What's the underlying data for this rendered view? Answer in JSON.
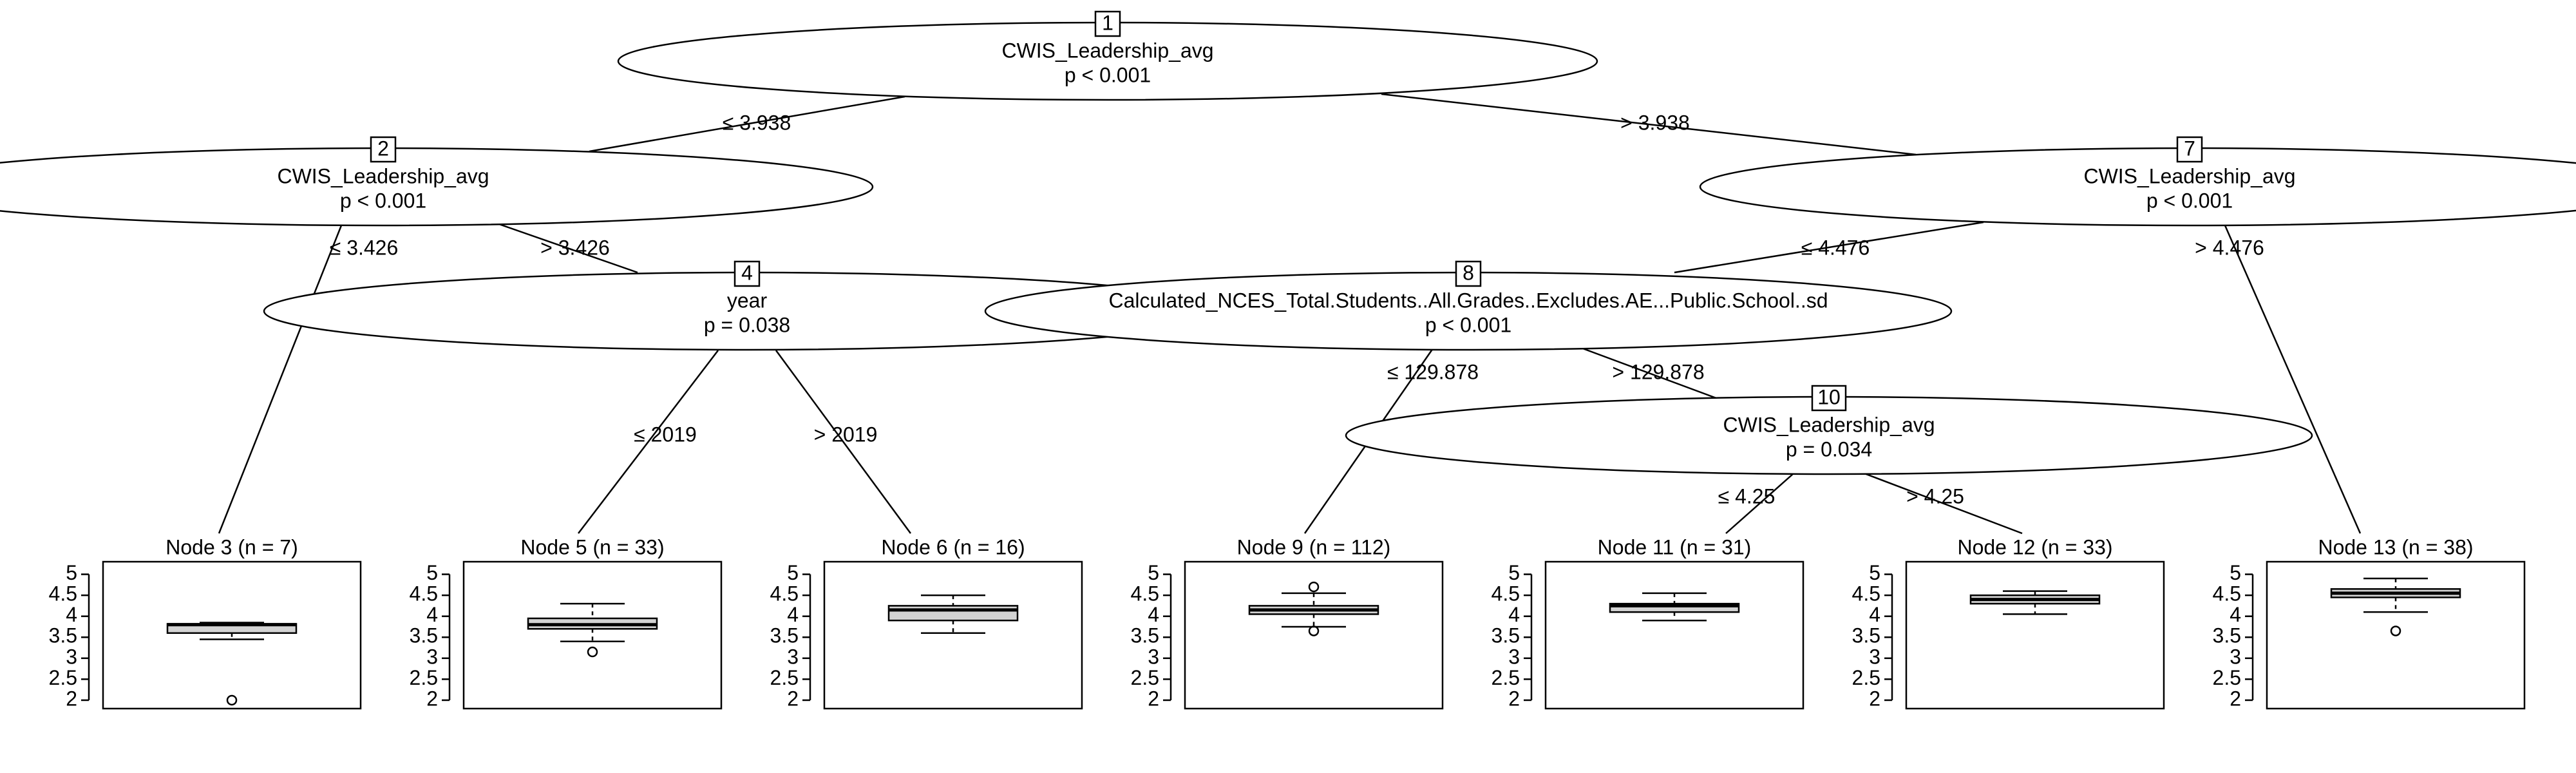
{
  "tree": {
    "inner_nodes": [
      {
        "id": "1",
        "variable": "CWIS_Leadership_avg",
        "p_value": "p < 0.001"
      },
      {
        "id": "2",
        "variable": "CWIS_Leadership_avg",
        "p_value": "p < 0.001"
      },
      {
        "id": "4",
        "variable": "year",
        "p_value": "p = 0.038"
      },
      {
        "id": "7",
        "variable": "CWIS_Leadership_avg",
        "p_value": "p < 0.001"
      },
      {
        "id": "8",
        "variable": "Calculated_NCES_Total.Students..All.Grades..Excludes.AE...Public.School..sd",
        "p_value": "p < 0.001"
      },
      {
        "id": "10",
        "variable": "CWIS_Leadership_avg",
        "p_value": "p = 0.034"
      }
    ],
    "edges": [
      {
        "from": "1",
        "to": "2",
        "label": "≤ 3.938"
      },
      {
        "from": "1",
        "to": "7",
        "label": "> 3.938"
      },
      {
        "from": "2",
        "to": "3",
        "label": "≤ 3.426"
      },
      {
        "from": "2",
        "to": "4",
        "label": "> 3.426"
      },
      {
        "from": "4",
        "to": "5",
        "label": "≤ 2019"
      },
      {
        "from": "4",
        "to": "6",
        "label": "> 2019"
      },
      {
        "from": "7",
        "to": "8",
        "label": "≤ 4.476"
      },
      {
        "from": "7",
        "to": "13",
        "label": "> 4.476"
      },
      {
        "from": "8",
        "to": "9",
        "label": "≤ 129.878"
      },
      {
        "from": "8",
        "to": "10",
        "label": "> 129.878"
      },
      {
        "from": "10",
        "to": "11",
        "label": "≤ 4.25"
      },
      {
        "from": "10",
        "to": "12",
        "label": "> 4.25"
      }
    ],
    "axis": {
      "ticks": [
        "2",
        "2.5",
        "3",
        "3.5",
        "4",
        "4.5",
        "5"
      ],
      "min": 2,
      "max": 5
    }
  },
  "chart_data": {
    "type": "boxplot",
    "ylim": [
      1.8,
      5.3
    ],
    "leaves": [
      {
        "id": "3",
        "title": "Node 3 (n = 7)",
        "min": 3.45,
        "q1": 3.6,
        "median": 3.8,
        "q3": 3.82,
        "max": 3.85,
        "outliers": [
          2.0
        ]
      },
      {
        "id": "5",
        "title": "Node 5 (n = 33)",
        "min": 3.4,
        "q1": 3.7,
        "median": 3.8,
        "q3": 3.95,
        "max": 4.3,
        "outliers": [
          3.15
        ]
      },
      {
        "id": "6",
        "title": "Node 6 (n = 16)",
        "min": 3.6,
        "q1": 3.9,
        "median": 4.15,
        "q3": 4.25,
        "max": 4.5,
        "outliers": []
      },
      {
        "id": "9",
        "title": "Node 9 (n = 112)",
        "min": 3.75,
        "q1": 4.05,
        "median": 4.15,
        "q3": 4.25,
        "max": 4.55,
        "outliers": [
          4.7,
          3.65
        ]
      },
      {
        "id": "11",
        "title": "Node 11 (n = 31)",
        "min": 3.9,
        "q1": 4.1,
        "median": 4.25,
        "q3": 4.3,
        "max": 4.55,
        "outliers": []
      },
      {
        "id": "12",
        "title": "Node 12 (n = 33)",
        "min": 4.05,
        "q1": 4.3,
        "median": 4.4,
        "q3": 4.5,
        "max": 4.6,
        "outliers": []
      },
      {
        "id": "13",
        "title": "Node 13 (n = 38)",
        "min": 4.1,
        "q1": 4.45,
        "median": 4.55,
        "q3": 4.65,
        "max": 4.9,
        "outliers": [
          3.65
        ]
      }
    ]
  }
}
